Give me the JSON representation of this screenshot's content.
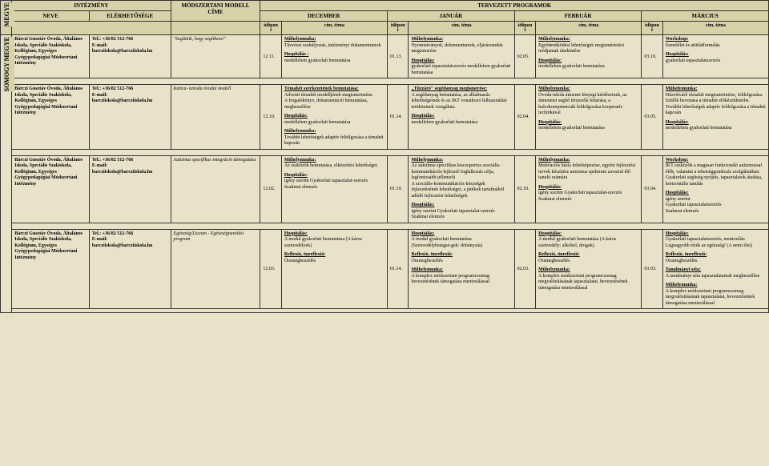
{
  "header": {
    "megye": "MEGYE",
    "intezmeny": "INTÉZMÉNY",
    "tervezett": "TERVEZETT PROGRAMOK",
    "neve": "NEVE",
    "elerhetosege": "ELÉRHETŐSÉGE",
    "modszertani": "MÓDSZERTANI MODELL CÍME",
    "months": [
      "DECEMBER",
      "JANUÁR",
      "FEBRUÁR",
      "MÁRCIUS"
    ],
    "idopont": "időpont",
    "cimtema": "cím, téma"
  },
  "county": "SOMOGY MEGYE",
  "inst": {
    "name": "Bárczi Gusztáv Óvoda, Általános Iskola, Speciális Szakiskola, Kollégium, Egységes Gyógypedagógiai Módszertani Intézmény",
    "tel": "Tel.: +36/82 512-766",
    "email": "E-mail: barcziiskola@barcziiskola.hu"
  },
  "rows": [
    {
      "model": "\"Segítünk, hogy segíthess!\"",
      "dec_d": "12.11.",
      "dec_t": "Műhelymunka:\nTűzvészi szabályozás, intézményi dokumentumok\n\nHospitálás :\nmodellelem gyakorlati bemutatása",
      "jan_d": "01.13.",
      "jan_t": "Műhelymunka:\nNyomtatványok, dokumentumok, eljárásrendek megismerése\n\nHospitálás:\ngyakorlati tapasztalatszerzés modellelem gyakorlati bemutatása",
      "feb_d": "02.05.",
      "feb_t": "Műhelymunka:\nEgyüttműködési lehetőségek megismértetési módjainak áttekintése\n\nHospitálás:\nmodellelem gyakorlati bemutatása",
      "mar_d": "03.10.",
      "mar_t": "Workshop:\nSzemlélet és attitűdformálás\n\nHospitálás:\ngyakorlati tapasztalatszerzés"
    },
    {
      "model": "Katica- tanoda óvodai modell",
      "dec_d": "12.10.",
      "dec_t": "Témahét szerkezetének bemutatása:\nAdventi témahét modelljének megismertetése.\nA forgatókönyv, dokumentáció bemutatása, megbeszélése\n\nHospitálás:\nmodellelem gyakorlati bemutatása\n\nMűhelymunka:\nTovábbi lehetőségek adaptív feltölgozása a témahét kapcsán",
      "jan_d": "01.14.",
      "jan_t": "„Tűzzáró\" segédanyag megismerése:\nA segédanyag bemutatása, az alkalmazás lehetőségeinek és az IKT vonatkozó felhasználási területeinek vizsgálata.\n\nHospitálás:\nmodellelem gyakorlati bemutatása",
      "feb_d": "02.04.",
      "feb_t": "Műhelymunka:\nÓvoda-iskola átmenet lényegi kérdéseinek, az átmenetet segítő tényezők feltárása, a kulcskompetenciák feldolgozása kooperatív technikával\n\nHospitálás:\nmodellelem gyakorlati bemutatása",
      "mar_d": "03.05.",
      "mar_t": "Műhelymunka:\nHúsvétvárő témahét megismertetése, feldolgozása. Szülők bevonása a témahét előkészületeibe. További lehetőségek adaptív feldolgozása a témahét kapcsán\n\nHospitálás:\nmodellelem gyakorlati bemutatása"
    },
    {
      "model": "Autizmus specifikus integráció támogatása",
      "dec_d": "12.02.",
      "dec_t": "Műhelymunka:\nAz eszközök bemutatása, elkészítési lehetőségei.\n\nHospitálás:\nigény szerint   Gyakorlati tapasztalat-szerzés\nSzakmai elemzés",
      "jan_d": "01.19.",
      "jan_t": "Műhelymunka:\nAz autizmus specifikus kiscsoportos szociális-kommunikációs fejlesztő foglalkozás célja, legfontosabb jellemzői\nA szociális-kommunikációs készségek fejlesztésének lehetőségei, a játékok tartalmából adódó fejlesztési lehetőségek\n\nHospitálás:\nigény szerint Gyakorlati tapasztalat-szerzés\nSzakmai elemzés",
      "feb_d": "02.10.",
      "feb_t": "Műhelymunka:\nMotivációs bázis feltérképezése, egyéni fejlesztési tervek készítése autizmus spektrum zavarral élő tanuló számára\n\nHospitálás:\nigény szerint Gyakorlati tapasztalat-szerzés\nSzakmai elemzés",
      "mar_d": "03.04.",
      "mar_t": "Workshop:\nIKT eszközök a magasan funkcionáló autizmussal élők, valamint a tehetséggondozás szolgálatában.\nGyakorlati segítség-nyújtás, tapasztalatok átadása, horizontális tanulás\n\nHospitálás:\nigény szerint\nGyakorlati tapasztalatszerzés\nSzakmai elemzés"
    },
    {
      "model": "Egészség/Liceum - Egészségnevelési program",
      "dec_d": "12.03.",
      "dec_t": "Hospitálás:\nA modul gyakorlati bemutatása (A káros szenvedélyek)\n\nReflexió, önreflexió:\nÓramegbeszélés",
      "jan_d": "01.14.",
      "jan_t": "Hospitálás:\nA modul gyakorlati bemutatása (Szenvedélybetegsé-gek: dohányzás)\n\nReflexió, önreflexió:\nÓramegbeszélés\n\nMűhelymunka:\nA komplex módszertani programcsomag bevezetésének támogatása mentorálással",
      "feb_d": "02.03.",
      "feb_t": "Hospitálás:\nA modul gyakorlati bemutatása (A káros szenvedély: alkohol, drogok)\n\nReflexió, önreflexió:\nÓramegbeszélés\n\nMűhelymunka:\nA komplex módszertani programcsomag megvalósításának tapasztalatai, bevezetésének támogatása mentorálással",
      "mar_d": "03.03.",
      "mar_t": "Hospitálás:\nGyakorlati tapasztalatszerzés, mentorálás\nLegnagyobb érték az egészség! (A nemi élet)\n\nReflexió, önreflexió:\nÓramegbeszélés.\n\nTanulmányi séta:\nA tanulmányi séta tapasztalatainak megbeszélése\n\nMűhelymunka:\nA komplex módszertani programcsomag megvalósításának tapasztalatai, bevezetésének támogatása mentorálással"
    }
  ]
}
